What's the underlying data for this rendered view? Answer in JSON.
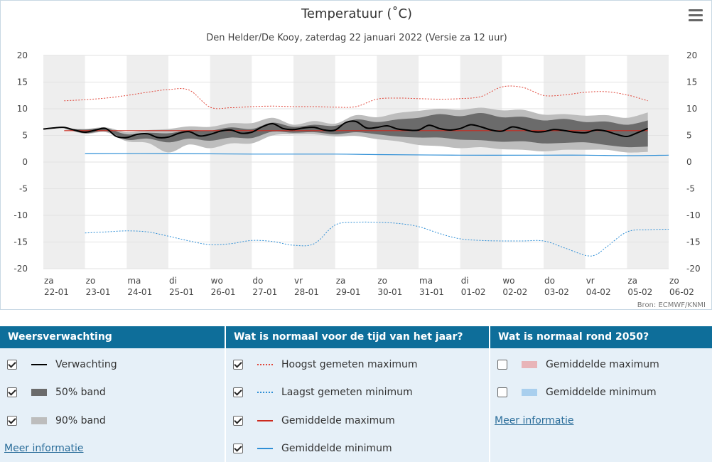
{
  "chart_data": {
    "type": "line",
    "title": "Temperatuur (˚C)",
    "subtitle": "Den Helder/De Kooy, zaterdag 22 januari 2022 (Versie za 12 uur)",
    "source": "Bron: ECMWF/KNMI",
    "ylim": [
      -20,
      20
    ],
    "yticks": [
      20,
      15,
      10,
      5,
      0,
      -5,
      -10,
      -15,
      -20
    ],
    "x_categories": [
      {
        "day": "za",
        "date": "22-01"
      },
      {
        "day": "zo",
        "date": "23-01"
      },
      {
        "day": "ma",
        "date": "24-01"
      },
      {
        "day": "di",
        "date": "25-01"
      },
      {
        "day": "wo",
        "date": "26-01"
      },
      {
        "day": "do",
        "date": "27-01"
      },
      {
        "day": "vr",
        "date": "28-01"
      },
      {
        "day": "za",
        "date": "29-01"
      },
      {
        "day": "zo",
        "date": "30-01"
      },
      {
        "day": "ma",
        "date": "31-01"
      },
      {
        "day": "di",
        "date": "01-02"
      },
      {
        "day": "wo",
        "date": "02-02"
      },
      {
        "day": "do",
        "date": "03-02"
      },
      {
        "day": "vr",
        "date": "04-02"
      },
      {
        "day": "za",
        "date": "05-02"
      },
      {
        "day": "zo",
        "date": "06-02"
      }
    ],
    "forecast": {
      "name": "Verwachting",
      "x": [
        0,
        0.25,
        0.5,
        0.75,
        1,
        1.25,
        1.5,
        1.75,
        2,
        2.25,
        2.5,
        2.75,
        3,
        3.25,
        3.5,
        3.75,
        4,
        4.25,
        4.5,
        4.75,
        5,
        5.25,
        5.5,
        5.75,
        6,
        6.25,
        6.5,
        6.75,
        7,
        7.25,
        7.5,
        7.75,
        8,
        8.25,
        8.5,
        8.75,
        9,
        9.25,
        9.5,
        9.75,
        10,
        10.25,
        10.5,
        10.75,
        11,
        11.25,
        11.5,
        11.75,
        12,
        12.25,
        12.5,
        12.75,
        13,
        13.25,
        13.5,
        13.75,
        14,
        14.25,
        14.5
      ],
      "values": [
        6.2,
        6.4,
        6.5,
        6.0,
        5.6,
        6.0,
        6.3,
        4.8,
        4.6,
        5.2,
        5.3,
        4.6,
        4.7,
        5.4,
        5.7,
        4.9,
        5.2,
        5.8,
        6.0,
        5.4,
        5.6,
        6.6,
        7.2,
        6.3,
        6.1,
        6.4,
        6.5,
        6.0,
        6.0,
        7.4,
        7.6,
        6.4,
        6.5,
        6.8,
        6.2,
        6.0,
        6.0,
        6.9,
        6.3,
        6.0,
        6.3,
        7.0,
        6.6,
        6.0,
        5.8,
        6.6,
        6.2,
        5.7,
        5.7,
        6.1,
        5.9,
        5.6,
        5.5,
        6.0,
        5.8,
        5.2,
        4.8,
        5.5,
        6.3
      ]
    },
    "band50": {
      "name": "50% band",
      "x": [
        0.5,
        1,
        1.5,
        2,
        2.5,
        3,
        3.5,
        4,
        4.5,
        5,
        5.5,
        6,
        6.5,
        7,
        7.5,
        8,
        8.5,
        9,
        9.5,
        10,
        10.5,
        11,
        11.5,
        12,
        12.5,
        13,
        13.5,
        14,
        14.5
      ],
      "upper": [
        6.3,
        6.1,
        6.3,
        5.2,
        5.5,
        5.4,
        6.0,
        5.9,
        6.5,
        6.2,
        7.4,
        6.6,
        7.0,
        6.8,
        8.0,
        7.5,
        8.0,
        8.3,
        9.0,
        8.6,
        9.2,
        8.4,
        8.5,
        7.8,
        8.1,
        7.5,
        7.6,
        7.0,
        7.8
      ],
      "lower": [
        6.3,
        5.4,
        5.8,
        4.2,
        4.4,
        3.7,
        4.4,
        4.0,
        4.6,
        4.5,
        5.7,
        5.5,
        5.6,
        5.2,
        5.6,
        5.2,
        4.8,
        4.6,
        4.6,
        4.2,
        4.1,
        3.8,
        3.9,
        3.5,
        3.6,
        3.7,
        3.2,
        2.8,
        2.9
      ]
    },
    "band90": {
      "name": "90% band",
      "x": [
        0.5,
        1,
        1.5,
        2,
        2.5,
        3,
        3.5,
        4,
        4.5,
        5,
        5.5,
        6,
        6.5,
        7,
        7.5,
        8,
        8.5,
        9,
        9.5,
        10,
        10.5,
        11,
        11.5,
        12,
        12.5,
        13,
        13.5,
        14,
        14.5
      ],
      "upper": [
        6.3,
        6.2,
        6.5,
        5.6,
        6.0,
        6.2,
        6.7,
        6.6,
        7.3,
        7.3,
        8.3,
        7.0,
        7.7,
        7.2,
        8.8,
        8.4,
        9.2,
        9.6,
        10.0,
        9.8,
        10.2,
        9.7,
        9.8,
        8.9,
        9.0,
        8.7,
        8.8,
        8.3,
        9.3
      ],
      "lower": [
        6.3,
        5.3,
        5.6,
        3.9,
        3.6,
        1.8,
        3.3,
        2.6,
        3.5,
        3.5,
        5.0,
        5.2,
        5.2,
        4.8,
        4.9,
        4.3,
        3.9,
        3.2,
        3.0,
        2.6,
        2.8,
        2.4,
        2.3,
        2.0,
        2.3,
        2.3,
        2.3,
        1.8,
        1.9
      ]
    },
    "hoogst_maximum": {
      "name": "Hoogst gemeten maximum",
      "x": [
        0.5,
        1,
        1.5,
        2,
        2.5,
        3,
        3.5,
        4,
        4.5,
        5,
        5.5,
        6,
        6.5,
        7,
        7.5,
        8,
        8.5,
        9,
        9.5,
        10,
        10.5,
        11,
        11.5,
        12,
        12.5,
        13,
        13.5,
        14,
        14.5
      ],
      "values": [
        11.5,
        11.7,
        12.0,
        12.5,
        13.1,
        13.6,
        13.5,
        10.3,
        10.2,
        10.4,
        10.5,
        10.4,
        10.4,
        10.3,
        10.4,
        11.8,
        12.0,
        11.9,
        11.8,
        11.9,
        12.3,
        14.1,
        14.0,
        12.5,
        12.6,
        13.1,
        13.2,
        12.6,
        11.5
      ]
    },
    "laagst_minimum": {
      "name": "Laagst gemeten minimum",
      "x": [
        1,
        1.5,
        2,
        2.5,
        3,
        3.5,
        4,
        4.5,
        5,
        5.5,
        6,
        6.5,
        7,
        7.5,
        8,
        8.5,
        9,
        9.5,
        10,
        10.5,
        11,
        11.5,
        12,
        12.5,
        13,
        13.25,
        13.5,
        14,
        14.5,
        15
      ],
      "values": [
        -13.3,
        -13.1,
        -12.9,
        -13.1,
        -13.9,
        -14.8,
        -15.5,
        -15.3,
        -14.7,
        -14.9,
        -15.6,
        -15.3,
        -11.8,
        -11.3,
        -11.3,
        -11.5,
        -12.1,
        -13.4,
        -14.4,
        -14.7,
        -14.8,
        -14.8,
        -14.8,
        -16.1,
        -17.5,
        -17.4,
        -16.0,
        -13.1,
        -12.7,
        -12.6
      ]
    },
    "gemiddelde_maximum": {
      "name": "Gemiddelde maximum",
      "x": [
        0.5,
        14.5
      ],
      "values": [
        5.9,
        5.9
      ]
    },
    "gemiddelde_minimum": {
      "name": "Gemiddelde minimum",
      "x": [
        1,
        3,
        5,
        7,
        8,
        10,
        12,
        13,
        14,
        15
      ],
      "values": [
        1.6,
        1.6,
        1.5,
        1.5,
        1.4,
        1.3,
        1.3,
        1.3,
        1.2,
        1.3
      ]
    },
    "colors": {
      "forecast": "#000000",
      "band50": "#6b6b6b",
      "band90": "#bdbdbd",
      "hoogst_maximum": "#e0463a",
      "laagst_minimum": "#2f8fd6",
      "gemiddelde_maximum": "#cc2a1e",
      "gemiddelde_minimum": "#2f8fd6",
      "weekend_stripe": "#eeeeee"
    }
  },
  "menu": {
    "icon": "hamburger-menu-icon"
  },
  "legend": {
    "col1": {
      "title": "Weersverwachting",
      "items": [
        {
          "label": "Verwachting",
          "checked": true
        },
        {
          "label": "50% band",
          "checked": true
        },
        {
          "label": "90% band",
          "checked": true
        }
      ],
      "more": "Meer informatie"
    },
    "col2": {
      "title": "Wat is normaal voor de tijd van het jaar?",
      "items": [
        {
          "label": "Hoogst gemeten maximum",
          "checked": true
        },
        {
          "label": "Laagst gemeten minimum",
          "checked": true
        },
        {
          "label": "Gemiddelde maximum",
          "checked": true
        },
        {
          "label": "Gemiddelde minimum",
          "checked": true
        }
      ]
    },
    "col3": {
      "title": "Wat is normaal rond 2050?",
      "items": [
        {
          "label": "Gemiddelde maximum",
          "checked": false,
          "color": "#e8b4b8"
        },
        {
          "label": "Gemiddelde minimum",
          "checked": false,
          "color": "#a9cfee"
        }
      ],
      "more": "Meer informatie"
    }
  }
}
